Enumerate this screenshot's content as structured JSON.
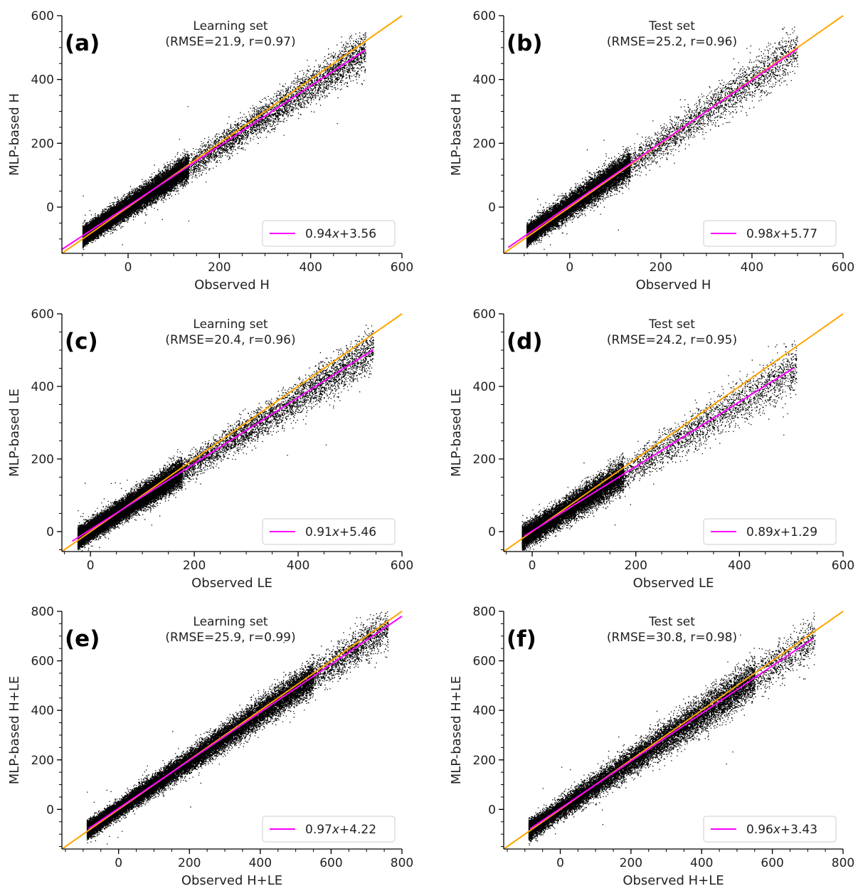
{
  "colors": {
    "scatter": "#000000",
    "fit_line": "#ff00ff",
    "identity_line": "#ffa500",
    "axis": "#000000",
    "legend_border": "#cccccc"
  },
  "chart_data": [
    {
      "type": "scatter",
      "panel_label": "(a)",
      "title": "Learning set",
      "subtitle": "(RMSE=21.9, r=0.97)",
      "xlabel": "Observed H",
      "ylabel": "MLP-based H",
      "xlim": [
        -145,
        600
      ],
      "ylim": [
        -145,
        600
      ],
      "xticks": [
        0,
        200,
        400,
        600
      ],
      "yticks": [
        0,
        200,
        400,
        600
      ],
      "n_points": 26000,
      "scatter_summary": {
        "x_min": -100,
        "x_max": 520,
        "spread_sd": 21.9,
        "x_peak": 60
      },
      "identity_line": {
        "from": -145,
        "to": 600
      },
      "fit": {
        "slope": 0.94,
        "intercept": 3.56,
        "x_start": -145,
        "x_end": 520,
        "label_prefix": "0.94",
        "label_var": "x",
        "label_suffix": "+3.56"
      },
      "legend_location": "lower-right"
    },
    {
      "type": "scatter",
      "panel_label": "(b)",
      "title": "Test set",
      "subtitle": "(RMSE=25.2, r=0.96)",
      "xlabel": "Observed H",
      "ylabel": "MLP-based H",
      "xlim": [
        -145,
        600
      ],
      "ylim": [
        -145,
        600
      ],
      "xticks": [
        0,
        200,
        400,
        600
      ],
      "yticks": [
        0,
        200,
        400,
        600
      ],
      "n_points": 17000,
      "scatter_summary": {
        "x_min": -95,
        "x_max": 500,
        "spread_sd": 25.2,
        "x_peak": 60
      },
      "identity_line": {
        "from": -145,
        "to": 600
      },
      "fit": {
        "slope": 0.98,
        "intercept": 5.77,
        "x_start": -135,
        "x_end": 500,
        "label_prefix": "0.98",
        "label_var": "x",
        "label_suffix": "+5.77"
      },
      "legend_location": "lower-right"
    },
    {
      "type": "scatter",
      "panel_label": "(c)",
      "title": "Learning set",
      "subtitle": "(RMSE=20.4, r=0.96)",
      "xlabel": "Observed LE",
      "ylabel": "MLP-based LE",
      "xlim": [
        -55,
        600
      ],
      "ylim": [
        -55,
        600
      ],
      "xticks": [
        0,
        200,
        400,
        600
      ],
      "yticks": [
        0,
        200,
        400,
        600
      ],
      "n_points": 26000,
      "scatter_summary": {
        "x_min": -25,
        "x_max": 545,
        "spread_sd": 20.4,
        "x_peak": 80
      },
      "identity_line": {
        "from": -55,
        "to": 600
      },
      "fit": {
        "slope": 0.91,
        "intercept": 5.46,
        "x_start": -35,
        "x_end": 545,
        "label_prefix": "0.91",
        "label_var": "x",
        "label_suffix": "+5.46"
      },
      "legend_location": "lower-right"
    },
    {
      "type": "scatter",
      "panel_label": "(d)",
      "title": "Test set",
      "subtitle": "(RMSE=24.2, r=0.95)",
      "xlabel": "Observed LE",
      "ylabel": "MLP-based LE",
      "xlim": [
        -55,
        600
      ],
      "ylim": [
        -55,
        600
      ],
      "xticks": [
        0,
        200,
        400,
        600
      ],
      "yticks": [
        0,
        200,
        400,
        600
      ],
      "n_points": 16000,
      "scatter_summary": {
        "x_min": -20,
        "x_max": 510,
        "spread_sd": 24.2,
        "x_peak": 80
      },
      "identity_line": {
        "from": -55,
        "to": 600
      },
      "fit": {
        "slope": 0.89,
        "intercept": 1.29,
        "x_start": -15,
        "x_end": 505,
        "label_prefix": "0.89",
        "label_var": "x",
        "label_suffix": "+1.29"
      },
      "legend_location": "lower-right"
    },
    {
      "type": "scatter",
      "panel_label": "(e)",
      "title": "Learning set",
      "subtitle": "(RMSE=25.9, r=0.99)",
      "xlabel": "Observed H+LE",
      "ylabel": "MLP-based H+LE",
      "xlim": [
        -160,
        800
      ],
      "ylim": [
        -160,
        800
      ],
      "xticks": [
        0,
        200,
        400,
        600,
        800
      ],
      "yticks": [
        0,
        200,
        400,
        600,
        800
      ],
      "n_points": 26000,
      "scatter_summary": {
        "x_min": -90,
        "x_max": 760,
        "spread_sd": 25.9,
        "x_peak": 250
      },
      "identity_line": {
        "from": -160,
        "to": 800
      },
      "fit": {
        "slope": 0.97,
        "intercept": 4.22,
        "x_start": -85,
        "x_end": 800,
        "label_prefix": "0.97",
        "label_var": "x",
        "label_suffix": "+4.22"
      },
      "legend_location": "lower-right"
    },
    {
      "type": "scatter",
      "panel_label": "(f)",
      "title": "Test set",
      "subtitle": "(RMSE=30.8, r=0.98)",
      "xlabel": "Observed H+LE",
      "ylabel": "MLP-based H+LE",
      "xlim": [
        -160,
        800
      ],
      "ylim": [
        -160,
        800
      ],
      "xticks": [
        0,
        200,
        400,
        600,
        800
      ],
      "yticks": [
        0,
        200,
        400,
        600,
        800
      ],
      "n_points": 17000,
      "scatter_summary": {
        "x_min": -90,
        "x_max": 720,
        "spread_sd": 30.8,
        "x_peak": 250
      },
      "identity_line": {
        "from": -160,
        "to": 800
      },
      "fit": {
        "slope": 0.96,
        "intercept": 3.43,
        "x_start": -85,
        "x_end": 715,
        "label_prefix": "0.96",
        "label_var": "x",
        "label_suffix": "+3.43"
      },
      "legend_location": "lower-right"
    }
  ]
}
